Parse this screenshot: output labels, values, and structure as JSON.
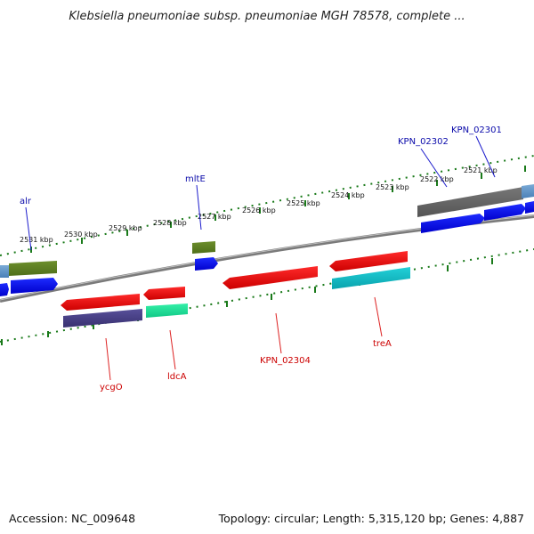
{
  "title": "Klebsiella pneumoniae subsp. pneumoniae MGH 78578, complete ...",
  "footer": {
    "accession": "Accession: NC_009648",
    "summary": "Topology: circular; Length: 5,315,120 bp; Genes: 4,887"
  },
  "colors": {
    "backbone": "#808080",
    "ruler_dots": "#1a7a1a",
    "forward_label": "#0a0aaa",
    "reverse_label": "#cc0000"
  },
  "scale_labels": [
    "2531 kbp",
    "2530 kbp",
    "2529 kbp",
    "2528 kbp",
    "2527 kbp",
    "2526 kbp",
    "2525 kbp",
    "2524 kbp",
    "2523 kbp",
    "2522 kbp",
    "2521 kbp"
  ],
  "forward_genes": [
    {
      "label": "alr",
      "color": "blue"
    },
    {
      "label": "mltE",
      "color": "blue"
    },
    {
      "label": "KPN_02302",
      "color": "blue"
    },
    {
      "label": "KPN_02301",
      "color": "blue"
    }
  ],
  "reverse_genes": [
    {
      "label": "ycgO",
      "color": "red"
    },
    {
      "label": "ldcA",
      "color": "red"
    },
    {
      "label": "KPN_02304",
      "color": "red"
    },
    {
      "label": "treA",
      "color": "red"
    }
  ]
}
